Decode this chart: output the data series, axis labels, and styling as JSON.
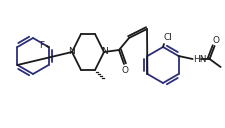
{
  "bg_color": "#ffffff",
  "ring_color": "#2d2d7a",
  "bond_color": "#1a1a1a",
  "figsize": [
    2.26,
    1.28
  ],
  "dpi": 100,
  "lw": 1.3,
  "F_label": "F",
  "Cl_label": "Cl",
  "O1_label": "O",
  "O2_label": "O",
  "N1_label": "N",
  "N2_label": "N",
  "HN_label": "HN"
}
